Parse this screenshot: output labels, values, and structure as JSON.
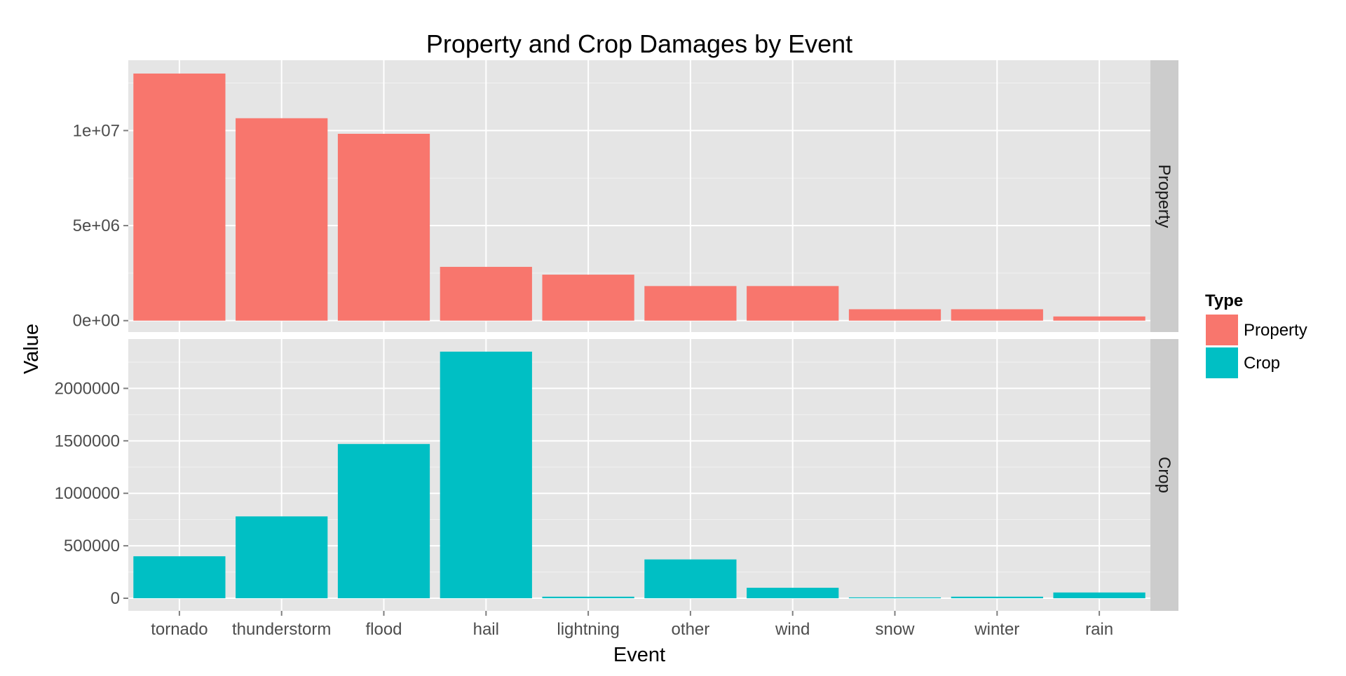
{
  "chart_data": {
    "type": "bar",
    "title": "Property and Crop Damages by Event",
    "xlabel": "Event",
    "ylabel": "Value",
    "categories": [
      "tornado",
      "thunderstorm",
      "flood",
      "hail",
      "lightning",
      "other",
      "wind",
      "snow",
      "winter",
      "rain"
    ],
    "facets": [
      {
        "name": "Property",
        "color": "#F8766D",
        "ylim": [
          -600000,
          13700000
        ],
        "ticks": [
          0,
          5000000,
          10000000
        ],
        "tick_labels": [
          "0e+00",
          "5e+06",
          "1e+07"
        ],
        "values": [
          13000000,
          10650000,
          9830000,
          2830000,
          2420000,
          1820000,
          1820000,
          600000,
          600000,
          220000
        ]
      },
      {
        "name": "Crop",
        "color": "#00BFC4",
        "ylim": [
          -120000,
          2470000
        ],
        "ticks": [
          0,
          500000,
          1000000,
          1500000,
          2000000
        ],
        "tick_labels": [
          "0",
          "500000",
          "1000000",
          "1500000",
          "2000000"
        ],
        "values": [
          400000,
          780000,
          1470000,
          2350000,
          15000,
          370000,
          100000,
          8000,
          15000,
          55000
        ]
      }
    ],
    "legend": {
      "title": "Type",
      "position": "right",
      "entries": [
        {
          "label": "Property",
          "color": "#F8766D"
        },
        {
          "label": "Crop",
          "color": "#00BFC4"
        }
      ]
    },
    "grid": true
  }
}
